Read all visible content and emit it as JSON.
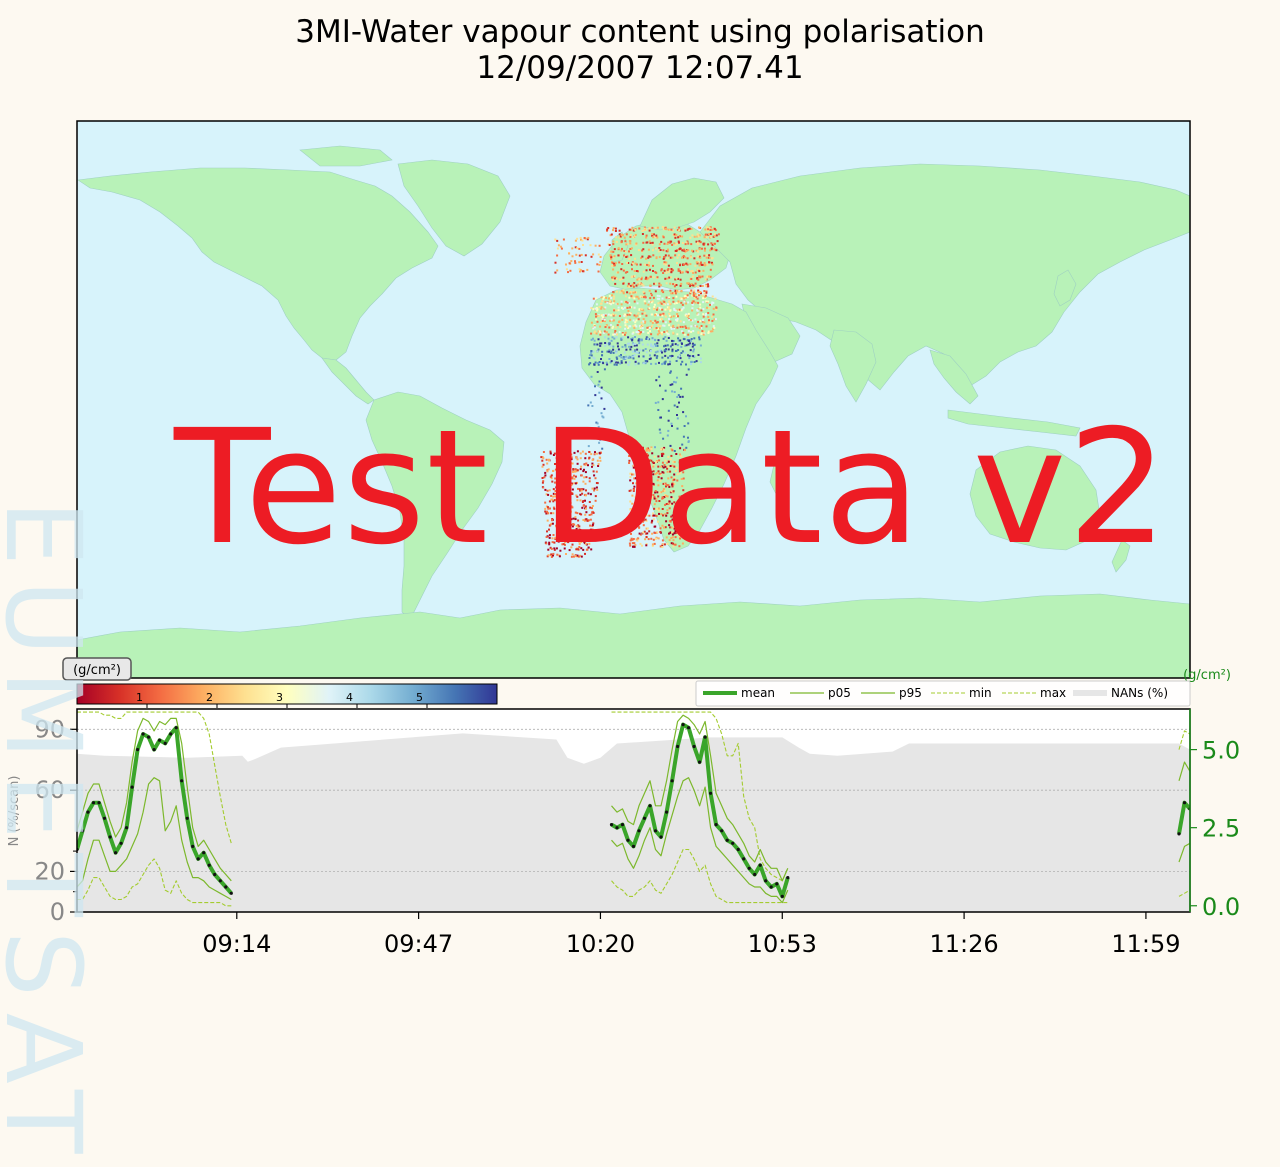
{
  "title": {
    "line1": "3MI-Water vapour content using polarisation",
    "line2": "12/09/2007 12:07.41"
  },
  "watermark": "Test Data v2",
  "side_watermark": "EUMETSAT",
  "colors": {
    "ocean": "#d7f3fb",
    "land": "#b8f2b8",
    "mean": "#3aa52a",
    "percentile": "#7cb82c",
    "minmax": "#a4cc30",
    "nans": "#e6e6e6",
    "right_axis": "#1a8a1a"
  },
  "chart_data": [
    {
      "type": "heatmap",
      "description_units": "(g/cm²)",
      "colorbar": {
        "label": "(g/cm²)",
        "range": [
          0,
          6
        ],
        "ticks": [
          "1",
          "2",
          "3",
          "4",
          "5"
        ],
        "colormap": "RdYlBu"
      }
    },
    {
      "type": "line",
      "x_ticks": [
        "09:14",
        "09:47",
        "10:20",
        "10:53",
        "11:26",
        "11:59"
      ],
      "x_tick_minutes": [
        554,
        587,
        620,
        653,
        686,
        719
      ],
      "xlim_minutes": [
        525,
        727
      ],
      "left_axis": {
        "label": "N (%/scan)",
        "ticks": [
          "0",
          "20",
          "60",
          "90"
        ],
        "tick_values": [
          0,
          20,
          60,
          90
        ],
        "ylim": [
          0,
          100
        ]
      },
      "right_axis": {
        "label": "(g/cm²)",
        "ticks": [
          "0.0",
          "2.5",
          "5.0"
        ],
        "tick_values": [
          0,
          2.5,
          5.0
        ],
        "ylim": [
          -0.2,
          6.3
        ]
      },
      "legend": {
        "placement": "top-right",
        "entries": [
          {
            "label": "mean",
            "style": "thick"
          },
          {
            "label": "p05",
            "style": "thin"
          },
          {
            "label": "p95",
            "style": "thin"
          },
          {
            "label": "min",
            "style": "dashed"
          },
          {
            "label": "max",
            "style": "dashed"
          },
          {
            "label": "NANs (%)",
            "style": "band"
          }
        ]
      },
      "nans_series": {
        "name": "NANs (%)",
        "points": [
          [
            525,
            78
          ],
          [
            530,
            77
          ],
          [
            545,
            76
          ],
          [
            555,
            77
          ],
          [
            556,
            74
          ],
          [
            557,
            75
          ],
          [
            562,
            81
          ],
          [
            595,
            88
          ],
          [
            612,
            85
          ],
          [
            614,
            76
          ],
          [
            617,
            73
          ],
          [
            620,
            76
          ],
          [
            623,
            83
          ],
          [
            640,
            86
          ],
          [
            653,
            86
          ],
          [
            656,
            81
          ],
          [
            658,
            78
          ],
          [
            663,
            77
          ],
          [
            673,
            79
          ],
          [
            676,
            83
          ],
          [
            725,
            83
          ],
          [
            727,
            80
          ]
        ]
      },
      "segments": [
        {
          "x": [
            525,
            526,
            527,
            528,
            529,
            530,
            531,
            532,
            533,
            534,
            535,
            536,
            537,
            538,
            539,
            540,
            541,
            542,
            543,
            544,
            545,
            546,
            547,
            548,
            549,
            550,
            551,
            552,
            553
          ],
          "mean": [
            1.8,
            2.4,
            3.0,
            3.3,
            3.3,
            2.8,
            2.2,
            1.7,
            2.0,
            2.5,
            3.8,
            5.0,
            5.5,
            5.4,
            5.0,
            5.3,
            5.2,
            5.5,
            5.7,
            4.0,
            2.8,
            1.9,
            1.5,
            1.7,
            1.3,
            1.0,
            0.8,
            0.6,
            0.4
          ],
          "p05": [
            0.6,
            0.8,
            1.5,
            2.1,
            2.1,
            1.6,
            1.1,
            1.1,
            1.3,
            1.5,
            1.9,
            2.3,
            3.0,
            3.9,
            4.1,
            4.0,
            2.4,
            2.7,
            3.2,
            2.1,
            1.4,
            0.9,
            0.9,
            0.8,
            0.6,
            0.5,
            0.4,
            0.3,
            0.2
          ],
          "p95": [
            2.4,
            3.0,
            3.6,
            3.9,
            3.9,
            3.3,
            2.7,
            2.2,
            2.5,
            3.3,
            4.6,
            5.6,
            6.0,
            5.9,
            5.6,
            5.9,
            5.8,
            6.0,
            6.0,
            5.2,
            3.8,
            2.5,
            1.9,
            2.1,
            1.8,
            1.5,
            1.2,
            1.0,
            0.8
          ],
          "min": [
            0.2,
            0.2,
            0.5,
            0.9,
            0.9,
            0.6,
            0.3,
            0.2,
            0.2,
            0.3,
            0.6,
            0.7,
            1.0,
            1.3,
            1.5,
            1.2,
            0.5,
            0.4,
            0.8,
            0.4,
            0.2,
            0.1,
            0.1,
            0.1,
            0.1,
            0.1,
            0.1,
            0.0,
            0.0
          ],
          "max": [
            6.2,
            6.2,
            6.2,
            6.2,
            6.2,
            6.1,
            6.1,
            6.0,
            6.0,
            6.2,
            6.2,
            6.2,
            6.2,
            6.2,
            6.2,
            6.2,
            6.2,
            6.2,
            6.2,
            6.2,
            6.2,
            6.2,
            6.2,
            6.0,
            5.5,
            4.5,
            3.5,
            2.6,
            2.0
          ]
        },
        {
          "x": [
            622,
            623,
            624,
            625,
            626,
            627,
            628,
            629,
            630,
            631,
            632,
            633,
            634,
            635,
            636,
            637,
            638,
            639,
            640,
            641,
            642,
            643,
            644,
            645,
            646,
            647,
            648,
            649,
            650,
            651,
            652,
            653,
            654
          ],
          "mean": [
            2.6,
            2.5,
            2.6,
            2.1,
            1.9,
            2.4,
            2.8,
            3.2,
            2.4,
            2.2,
            3.0,
            4.0,
            5.1,
            5.8,
            5.7,
            5.1,
            4.6,
            5.4,
            3.6,
            2.6,
            2.4,
            2.1,
            2.0,
            1.8,
            1.5,
            1.2,
            1.0,
            1.3,
            0.8,
            0.6,
            0.7,
            0.3,
            0.9
          ],
          "p05": [
            2.1,
            1.9,
            2.0,
            1.5,
            1.2,
            1.6,
            2.1,
            2.5,
            1.8,
            1.6,
            2.3,
            2.9,
            3.5,
            4.0,
            4.1,
            3.7,
            3.2,
            3.8,
            2.5,
            1.9,
            1.7,
            1.5,
            1.3,
            1.1,
            0.9,
            0.7,
            0.6,
            0.6,
            0.4,
            0.3,
            0.3,
            0.1,
            0.5
          ],
          "p95": [
            3.2,
            3.0,
            3.1,
            2.7,
            2.6,
            3.2,
            3.6,
            4.0,
            3.2,
            3.2,
            4.0,
            5.0,
            5.9,
            6.1,
            6.0,
            5.8,
            5.5,
            5.9,
            4.8,
            3.6,
            3.2,
            2.8,
            2.6,
            2.3,
            2.0,
            1.6,
            1.4,
            1.8,
            1.4,
            1.2,
            1.2,
            0.8,
            1.2
          ],
          "min": [
            0.8,
            0.6,
            0.5,
            0.3,
            0.3,
            0.5,
            0.6,
            0.8,
            0.5,
            0.4,
            0.7,
            1.0,
            1.4,
            1.8,
            1.8,
            1.5,
            1.1,
            1.3,
            0.7,
            0.3,
            0.2,
            0.1,
            0.1,
            0.1,
            0.1,
            0.1,
            0.1,
            0.1,
            0.1,
            0.1,
            0.1,
            0.1,
            0.1
          ],
          "max": [
            6.2,
            6.2,
            6.2,
            6.2,
            6.2,
            6.2,
            6.2,
            6.2,
            6.2,
            6.2,
            6.2,
            6.2,
            6.2,
            6.2,
            6.2,
            6.2,
            6.2,
            6.2,
            6.2,
            6.0,
            5.5,
            4.8,
            4.8,
            5.2,
            3.5,
            2.8,
            2.5,
            1.5,
            1.2,
            1.0,
            0.9,
            0.8,
            1.2
          ]
        },
        {
          "x": [
            725,
            726,
            727
          ],
          "mean": [
            2.3,
            3.3,
            3.1
          ],
          "p05": [
            1.4,
            1.9,
            2.0
          ],
          "p95": [
            4.0,
            4.6,
            4.3
          ],
          "min": [
            0.3,
            0.4,
            0.5
          ],
          "max": [
            5.0,
            5.6,
            5.5
          ]
        }
      ]
    }
  ]
}
